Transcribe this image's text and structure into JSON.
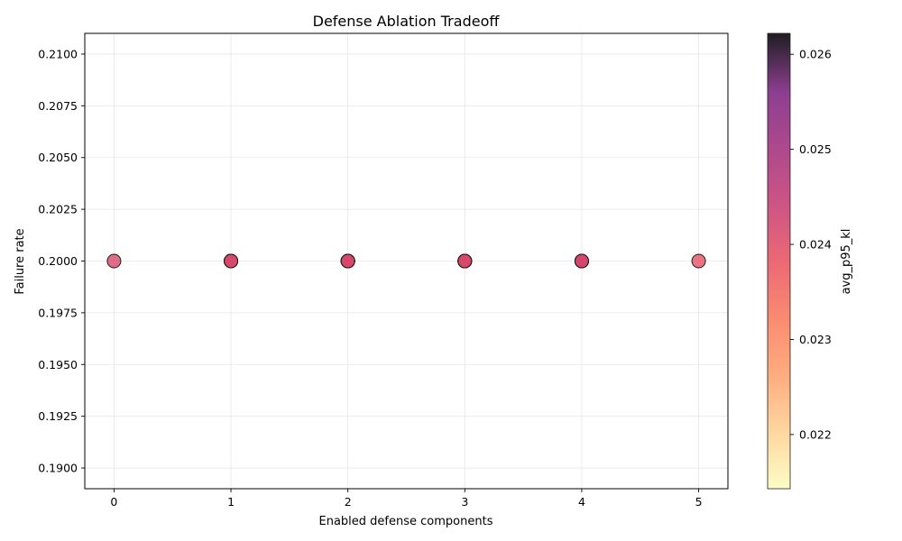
{
  "chart_data": {
    "type": "scatter",
    "title": "Defense Ablation Tradeoff",
    "xlabel": "Enabled defense components",
    "ylabel": "Failure rate",
    "xlim": [
      -0.25,
      5.25
    ],
    "ylim": [
      0.189,
      0.211
    ],
    "xticks": [
      0,
      1,
      2,
      3,
      4,
      5
    ],
    "yticks": [
      0.19,
      0.1925,
      0.195,
      0.1975,
      0.2,
      0.2025,
      0.205,
      0.2075,
      0.21
    ],
    "ytick_labels": [
      "0.1900",
      "0.1925",
      "0.1950",
      "0.1975",
      "0.2000",
      "0.2025",
      "0.2050",
      "0.2075",
      "0.2100"
    ],
    "grid": true,
    "colorbar": {
      "label": "avg_p95_kl",
      "colormap": "magma_r",
      "range": [
        0.02143,
        0.02622
      ],
      "ticks": [
        0.022,
        0.023,
        0.024,
        0.025,
        0.026
      ],
      "tick_labels": [
        "0.022",
        "0.023",
        "0.024",
        "0.025",
        "0.026"
      ]
    },
    "points": [
      {
        "x": 0,
        "y": 0.2,
        "c": 0.02415
      },
      {
        "x": 1,
        "y": 0.2,
        "c": 0.02405
      },
      {
        "x": 1,
        "y": 0.2,
        "c": 0.0241
      },
      {
        "x": 1,
        "y": 0.2,
        "c": 0.02418
      },
      {
        "x": 1,
        "y": 0.2,
        "c": 0.0242
      },
      {
        "x": 1,
        "y": 0.2,
        "c": 0.02412
      },
      {
        "x": 2,
        "y": 0.2,
        "c": 0.0241
      },
      {
        "x": 2,
        "y": 0.2,
        "c": 0.02415
      },
      {
        "x": 2,
        "y": 0.2,
        "c": 0.0242
      },
      {
        "x": 2,
        "y": 0.2,
        "c": 0.02425
      },
      {
        "x": 2,
        "y": 0.2,
        "c": 0.02418
      },
      {
        "x": 2,
        "y": 0.2,
        "c": 0.02412
      },
      {
        "x": 2,
        "y": 0.2,
        "c": 0.02408
      },
      {
        "x": 2,
        "y": 0.2,
        "c": 0.02422
      },
      {
        "x": 2,
        "y": 0.2,
        "c": 0.02416
      },
      {
        "x": 2,
        "y": 0.2,
        "c": 0.02414
      },
      {
        "x": 3,
        "y": 0.2,
        "c": 0.0241
      },
      {
        "x": 3,
        "y": 0.2,
        "c": 0.02415
      },
      {
        "x": 3,
        "y": 0.2,
        "c": 0.0242
      },
      {
        "x": 3,
        "y": 0.2,
        "c": 0.02418
      },
      {
        "x": 3,
        "y": 0.2,
        "c": 0.02412
      },
      {
        "x": 3,
        "y": 0.2,
        "c": 0.02408
      },
      {
        "x": 3,
        "y": 0.2,
        "c": 0.02422
      },
      {
        "x": 3,
        "y": 0.2,
        "c": 0.02416
      },
      {
        "x": 3,
        "y": 0.2,
        "c": 0.02414
      },
      {
        "x": 3,
        "y": 0.2,
        "c": 0.02411
      },
      {
        "x": 4,
        "y": 0.2,
        "c": 0.0241
      },
      {
        "x": 4,
        "y": 0.2,
        "c": 0.02415
      },
      {
        "x": 4,
        "y": 0.2,
        "c": 0.02418
      },
      {
        "x": 4,
        "y": 0.2,
        "c": 0.02412
      },
      {
        "x": 4,
        "y": 0.2,
        "c": 0.0242
      },
      {
        "x": 5,
        "y": 0.2,
        "c": 0.0239
      }
    ]
  }
}
